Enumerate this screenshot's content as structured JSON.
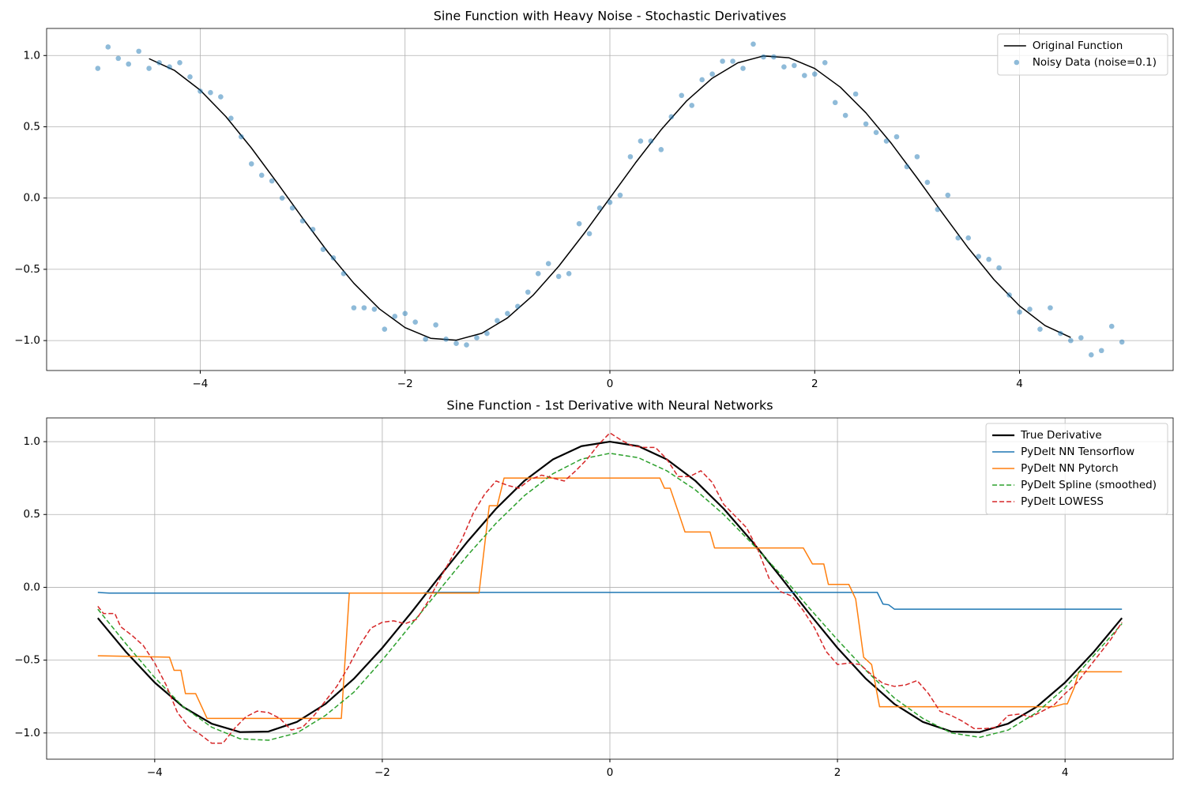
{
  "chart_data": [
    {
      "type": "line",
      "title": "Sine Function with Heavy Noise - Stochastic Derivatives",
      "xlim": [
        -5.5,
        5.5
      ],
      "ylim": [
        -1.21,
        1.19
      ],
      "xticks": [
        {
          "value": -4,
          "label": "−4"
        },
        {
          "value": -2,
          "label": "−2"
        },
        0,
        2,
        4
      ],
      "yticks": [
        {
          "value": -1,
          "label": "−1.0"
        },
        {
          "value": -0.5,
          "label": "−0.5"
        },
        {
          "value": 0,
          "label": "0.0"
        },
        0.5,
        {
          "value": 1,
          "label": "1.0"
        }
      ],
      "grid": true,
      "legend": "upper right",
      "series": [
        {
          "name": "Original Function",
          "type": "line",
          "color": "#000000",
          "linewidth": 1.5,
          "x": [
            -4.5,
            -4.25,
            -4,
            -3.75,
            -3.5,
            -3.25,
            -3,
            -2.75,
            -2.5,
            -2.25,
            -2,
            -1.75,
            -1.5,
            -1.25,
            -1,
            -0.75,
            -0.5,
            -0.25,
            0,
            0.25,
            0.5,
            0.75,
            1,
            1.25,
            1.5,
            1.75,
            2,
            2.25,
            2.5,
            2.75,
            3,
            3.25,
            3.5,
            3.75,
            4,
            4.25,
            4.5
          ],
          "values": [
            0.978,
            0.895,
            0.757,
            0.572,
            0.351,
            0.108,
            -0.141,
            -0.382,
            -0.598,
            -0.778,
            -0.909,
            -0.984,
            -0.997,
            -0.949,
            -0.841,
            -0.682,
            -0.479,
            -0.247,
            0,
            0.247,
            0.479,
            0.682,
            0.841,
            0.949,
            0.997,
            0.984,
            0.909,
            0.778,
            0.598,
            0.382,
            0.141,
            -0.108,
            -0.351,
            -0.572,
            -0.757,
            -0.895,
            -0.978
          ]
        },
        {
          "name": "Noisy Data (noise=0.1)",
          "type": "scatter",
          "color": "#1f77b4",
          "alpha": 0.5,
          "x": [
            -5,
            -4.9,
            -4.8,
            -4.7,
            -4.6,
            -4.5,
            -4.4,
            -4.3,
            -4.2,
            -4.1,
            -4,
            -3.9,
            -3.8,
            -3.7,
            -3.6,
            -3.5,
            -3.4,
            -3.3,
            -3.2,
            -3.1,
            -3,
            -2.9,
            -2.8,
            -2.7,
            -2.6,
            -2.5,
            -2.4,
            -2.3,
            -2.2,
            -2.1,
            -2,
            -1.9,
            -1.8,
            -1.7,
            -1.6,
            -1.5,
            -1.4,
            -1.3,
            -1.2,
            -1.1,
            -1,
            -0.9,
            -0.8,
            -0.7,
            -0.6,
            -0.5,
            -0.4,
            -0.3,
            -0.2,
            -0.1,
            0,
            0.1,
            0.2,
            0.3,
            0.4,
            0.5,
            0.6,
            0.7,
            0.8,
            0.9,
            1,
            1.1,
            1.2,
            1.3,
            1.4,
            1.5,
            1.6,
            1.7,
            1.8,
            1.9,
            2,
            2.1,
            2.2,
            2.3,
            2.4,
            2.5,
            2.6,
            2.7,
            2.8,
            2.9,
            3,
            3.1,
            3.2,
            3.3,
            3.4,
            3.5,
            3.6,
            3.7,
            3.8,
            3.9,
            4,
            4.1,
            4.2,
            4.3,
            4.4,
            4.5,
            4.6,
            4.7,
            4.8,
            4.9,
            5
          ],
          "values": [
            0.91,
            1.06,
            0.98,
            0.94,
            1.03,
            0.91,
            0.95,
            0.92,
            0.95,
            0.85,
            0.75,
            0.74,
            0.71,
            0.56,
            0.43,
            0.24,
            0.16,
            0.12,
            0.0,
            -0.07,
            -0.16,
            -0.22,
            -0.36,
            -0.42,
            -0.53,
            -0.77,
            -0.77,
            -0.78,
            -0.92,
            -0.83,
            -0.81,
            -0.87,
            -0.99,
            -0.89,
            -0.99,
            -1.02,
            -1.03,
            -0.98,
            -0.95,
            -0.86,
            -0.81,
            -0.76,
            -0.66,
            -0.53,
            -0.46,
            -0.55,
            -0.53,
            -0.18,
            -0.25,
            -0.07,
            -0.03,
            0.02,
            0.29,
            0.4,
            0.4,
            0.34,
            0.57,
            0.72,
            0.65,
            0.83,
            0.87,
            0.96,
            0.96,
            0.91,
            1.08,
            0.99,
            0.99,
            0.92,
            0.93,
            0.86,
            0.87,
            0.95,
            0.67,
            0.58,
            0.73,
            0.52,
            0.46,
            0.4,
            0.43,
            0.22,
            0.29,
            0.11,
            -0.08,
            0.02,
            -0.28,
            -0.28,
            -0.41,
            -0.43,
            -0.49,
            -0.68,
            -0.8,
            -0.78,
            -0.92,
            -0.77,
            -0.95,
            -1.0,
            -0.98,
            -1.1,
            -1.07,
            -0.9,
            -1.01
          ]
        }
      ]
    },
    {
      "type": "line",
      "title": "Sine Function - 1st Derivative with Neural Networks",
      "xlim": [
        -4.95,
        4.95
      ],
      "ylim": [
        -1.18,
        1.163
      ],
      "xticks": [
        {
          "value": -4,
          "label": "−4"
        },
        {
          "value": -2,
          "label": "−2"
        },
        0,
        2,
        4
      ],
      "yticks": [
        {
          "value": -1,
          "label": "−1.0"
        },
        {
          "value": -0.5,
          "label": "−0.5"
        },
        {
          "value": 0,
          "label": "0.0"
        },
        0.5,
        {
          "value": 1,
          "label": "1.0"
        }
      ],
      "grid": true,
      "legend": "upper right",
      "series": [
        {
          "name": "True Derivative",
          "type": "line",
          "color": "#000000",
          "linewidth": 2.2,
          "x": [
            -4.5,
            -4.25,
            -4,
            -3.75,
            -3.5,
            -3.25,
            -3,
            -2.75,
            -2.5,
            -2.25,
            -2,
            -1.75,
            -1.5,
            -1.25,
            -1,
            -0.75,
            -0.5,
            -0.25,
            0,
            0.25,
            0.5,
            0.75,
            1,
            1.25,
            1.5,
            1.75,
            2,
            2.25,
            2.5,
            2.75,
            3,
            3.25,
            3.5,
            3.75,
            4,
            4.25,
            4.5
          ],
          "values": [
            -0.211,
            -0.446,
            -0.654,
            -0.821,
            -0.936,
            -0.994,
            -0.99,
            -0.924,
            -0.801,
            -0.628,
            -0.416,
            -0.178,
            0.071,
            0.315,
            0.54,
            0.732,
            0.878,
            0.969,
            1,
            0.969,
            0.878,
            0.732,
            0.54,
            0.315,
            0.071,
            -0.178,
            -0.416,
            -0.628,
            -0.801,
            -0.924,
            -0.99,
            -0.994,
            -0.936,
            -0.821,
            -0.654,
            -0.446,
            -0.211
          ]
        },
        {
          "name": "PyDelt NN Tensorflow",
          "type": "line",
          "color": "#1f77b4",
          "linewidth": 1.5,
          "x": [
            -4.5,
            -4.4,
            -1.65,
            -1.6,
            2.35,
            2.4,
            2.45,
            2.5,
            4.5
          ],
          "values": [
            -0.035,
            -0.04,
            -0.04,
            -0.035,
            -0.035,
            -0.115,
            -0.12,
            -0.15,
            -0.15
          ]
        },
        {
          "name": "PyDelt NN Pytorch",
          "type": "line",
          "color": "#ff7f0e",
          "linewidth": 1.5,
          "x": [
            -4.5,
            -3.87,
            -3.83,
            -3.77,
            -3.73,
            -3.64,
            -3.54,
            -2.36,
            -2.29,
            -1.15,
            -1.06,
            -0.99,
            -0.93,
            0.44,
            0.48,
            0.53,
            0.6,
            0.66,
            0.88,
            0.92,
            1.7,
            1.78,
            1.88,
            1.92,
            2.1,
            2.16,
            2.23,
            2.3,
            2.37,
            3.9,
            3.99,
            4.02,
            4.08,
            4.12,
            4.22,
            4.5
          ],
          "values": [
            -0.47,
            -0.48,
            -0.57,
            -0.57,
            -0.73,
            -0.73,
            -0.9,
            -0.9,
            -0.04,
            -0.04,
            0.56,
            0.56,
            0.75,
            0.75,
            0.68,
            0.68,
            0.52,
            0.38,
            0.38,
            0.27,
            0.27,
            0.16,
            0.16,
            0.02,
            0.02,
            -0.08,
            -0.48,
            -0.53,
            -0.82,
            -0.82,
            -0.8,
            -0.8,
            -0.69,
            -0.58,
            -0.58,
            -0.58
          ]
        },
        {
          "name": "PyDelt Spline (smoothed)",
          "type": "line",
          "color": "#2ca02c",
          "linewidth": 1.5,
          "dashed": true,
          "x": [
            -4.5,
            -4.25,
            -4,
            -3.75,
            -3.5,
            -3.25,
            -3,
            -2.75,
            -2.5,
            -2.25,
            -2,
            -1.75,
            -1.5,
            -1.25,
            -1,
            -0.75,
            -0.5,
            -0.25,
            0,
            0.25,
            0.5,
            0.75,
            1,
            1.25,
            1.5,
            1.75,
            2,
            2.25,
            2.5,
            2.75,
            3,
            3.25,
            3.5,
            3.75,
            4,
            4.25,
            4.5
          ],
          "values": [
            -0.15,
            -0.39,
            -0.62,
            -0.82,
            -0.96,
            -1.04,
            -1.05,
            -1.0,
            -0.88,
            -0.72,
            -0.5,
            -0.26,
            -0.02,
            0.22,
            0.44,
            0.63,
            0.78,
            0.88,
            0.92,
            0.89,
            0.8,
            0.67,
            0.5,
            0.3,
            0.09,
            -0.14,
            -0.36,
            -0.57,
            -0.76,
            -0.9,
            -1.0,
            -1.03,
            -0.98,
            -0.86,
            -0.69,
            -0.47,
            -0.25
          ]
        },
        {
          "name": "PyDelt LOWESS",
          "type": "line",
          "color": "#d62728",
          "linewidth": 1.5,
          "dashed": true,
          "x": [
            -4.5,
            -4.45,
            -4.35,
            -4.3,
            -4.2,
            -4.1,
            -4,
            -3.9,
            -3.8,
            -3.7,
            -3.6,
            -3.5,
            -3.4,
            -3.3,
            -3.2,
            -3.1,
            -3,
            -2.9,
            -2.8,
            -2.7,
            -2.6,
            -2.5,
            -2.4,
            -2.3,
            -2.2,
            -2.1,
            -2,
            -1.9,
            -1.8,
            -1.7,
            -1.6,
            -1.5,
            -1.4,
            -1.3,
            -1.2,
            -1.1,
            -1,
            -0.9,
            -0.8,
            -0.7,
            -0.6,
            -0.5,
            -0.4,
            -0.3,
            -0.2,
            -0.1,
            0,
            0.1,
            0.2,
            0.3,
            0.4,
            0.5,
            0.6,
            0.7,
            0.8,
            0.9,
            1,
            1.1,
            1.2,
            1.3,
            1.4,
            1.5,
            1.6,
            1.7,
            1.8,
            1.9,
            2,
            2.1,
            2.2,
            2.3,
            2.4,
            2.5,
            2.6,
            2.7,
            2.8,
            2.9,
            3,
            3.1,
            3.2,
            3.3,
            3.4,
            3.5,
            3.6,
            3.7,
            3.8,
            3.9,
            4,
            4.1,
            4.2,
            4.3,
            4.4,
            4.5
          ],
          "values": [
            -0.13,
            -0.18,
            -0.18,
            -0.27,
            -0.33,
            -0.4,
            -0.52,
            -0.67,
            -0.86,
            -0.96,
            -1.01,
            -1.07,
            -1.07,
            -0.97,
            -0.89,
            -0.85,
            -0.86,
            -0.9,
            -0.98,
            -0.96,
            -0.88,
            -0.78,
            -0.68,
            -0.55,
            -0.4,
            -0.28,
            -0.24,
            -0.23,
            -0.25,
            -0.22,
            -0.1,
            0.05,
            0.19,
            0.33,
            0.51,
            0.64,
            0.73,
            0.7,
            0.68,
            0.74,
            0.77,
            0.75,
            0.73,
            0.8,
            0.88,
            0.98,
            1.06,
            1.01,
            0.97,
            0.96,
            0.96,
            0.88,
            0.76,
            0.76,
            0.8,
            0.72,
            0.57,
            0.49,
            0.41,
            0.26,
            0.06,
            -0.03,
            -0.06,
            -0.16,
            -0.28,
            -0.44,
            -0.53,
            -0.52,
            -0.53,
            -0.6,
            -0.66,
            -0.68,
            -0.67,
            -0.64,
            -0.73,
            -0.85,
            -0.88,
            -0.92,
            -0.97,
            -0.97,
            -0.96,
            -0.88,
            -0.87,
            -0.89,
            -0.85,
            -0.81,
            -0.73,
            -0.66,
            -0.56,
            -0.46,
            -0.36,
            -0.24
          ]
        }
      ]
    }
  ]
}
